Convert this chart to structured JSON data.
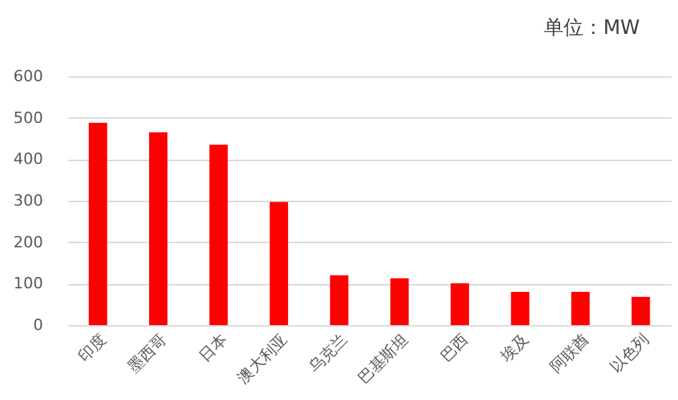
{
  "chart_data": {
    "type": "bar",
    "annotations": [
      "单位：MW"
    ],
    "categories": [
      "印度",
      "墨西哥",
      "日本",
      "澳大利亚",
      "乌克兰",
      "巴基斯坦",
      "巴西",
      "埃及",
      "阿联酋",
      "以色列"
    ],
    "values": [
      488,
      465,
      435,
      297,
      120,
      113,
      101,
      80,
      80,
      68
    ],
    "color": "#ff0000",
    "ylim": [
      0,
      600
    ],
    "yticks": [
      0,
      100,
      200,
      300,
      400,
      500,
      600
    ],
    "grid": "y"
  }
}
